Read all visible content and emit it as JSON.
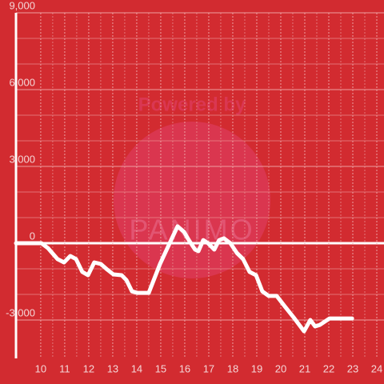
{
  "chart_data": {
    "type": "line",
    "watermark": [
      "Powered by",
      "PANIMO"
    ],
    "x": [
      8.97,
      10.03,
      10.3,
      10.7,
      10.97,
      11.23,
      11.47,
      11.73,
      11.97,
      12.23,
      12.5,
      12.77,
      13.03,
      13.37,
      13.57,
      13.8,
      14.03,
      14.5,
      14.97,
      15.43,
      15.7,
      15.97,
      16.17,
      16.43,
      16.57,
      16.77,
      16.97,
      17.23,
      17.43,
      17.63,
      17.9,
      18.17,
      18.43,
      18.7,
      18.97,
      19.23,
      19.5,
      19.83,
      20.17,
      20.57,
      20.97,
      21.23,
      21.43,
      21.63,
      22.03,
      22.97
    ],
    "values": [
      0,
      0,
      -190,
      -620,
      -750,
      -500,
      -620,
      -1120,
      -1250,
      -750,
      -810,
      -1030,
      -1220,
      -1250,
      -1440,
      -1880,
      -1940,
      -1940,
      -810,
      120,
      660,
      440,
      120,
      -250,
      -310,
      120,
      0,
      -250,
      120,
      190,
      0,
      -380,
      -620,
      -1120,
      -1250,
      -1880,
      -2060,
      -2060,
      -2470,
      -2940,
      -3440,
      -3000,
      -3250,
      -3190,
      -2940,
      -2940
    ],
    "color": "#ffffff",
    "xlim": [
      8.97,
      24.3
    ],
    "xticks": [
      10,
      11,
      12,
      13,
      14,
      15,
      16,
      17,
      18,
      19,
      20,
      21,
      22,
      23,
      24
    ],
    "ylim": [
      -4500,
      9000
    ],
    "yticks": [
      {
        "value": -3000,
        "label": "-3,000"
      },
      0,
      {
        "value": 3000,
        "label": "3,000"
      },
      {
        "value": 6000,
        "label": "6,000"
      },
      {
        "value": 9000,
        "label": "9,000"
      }
    ],
    "grid": true
  }
}
